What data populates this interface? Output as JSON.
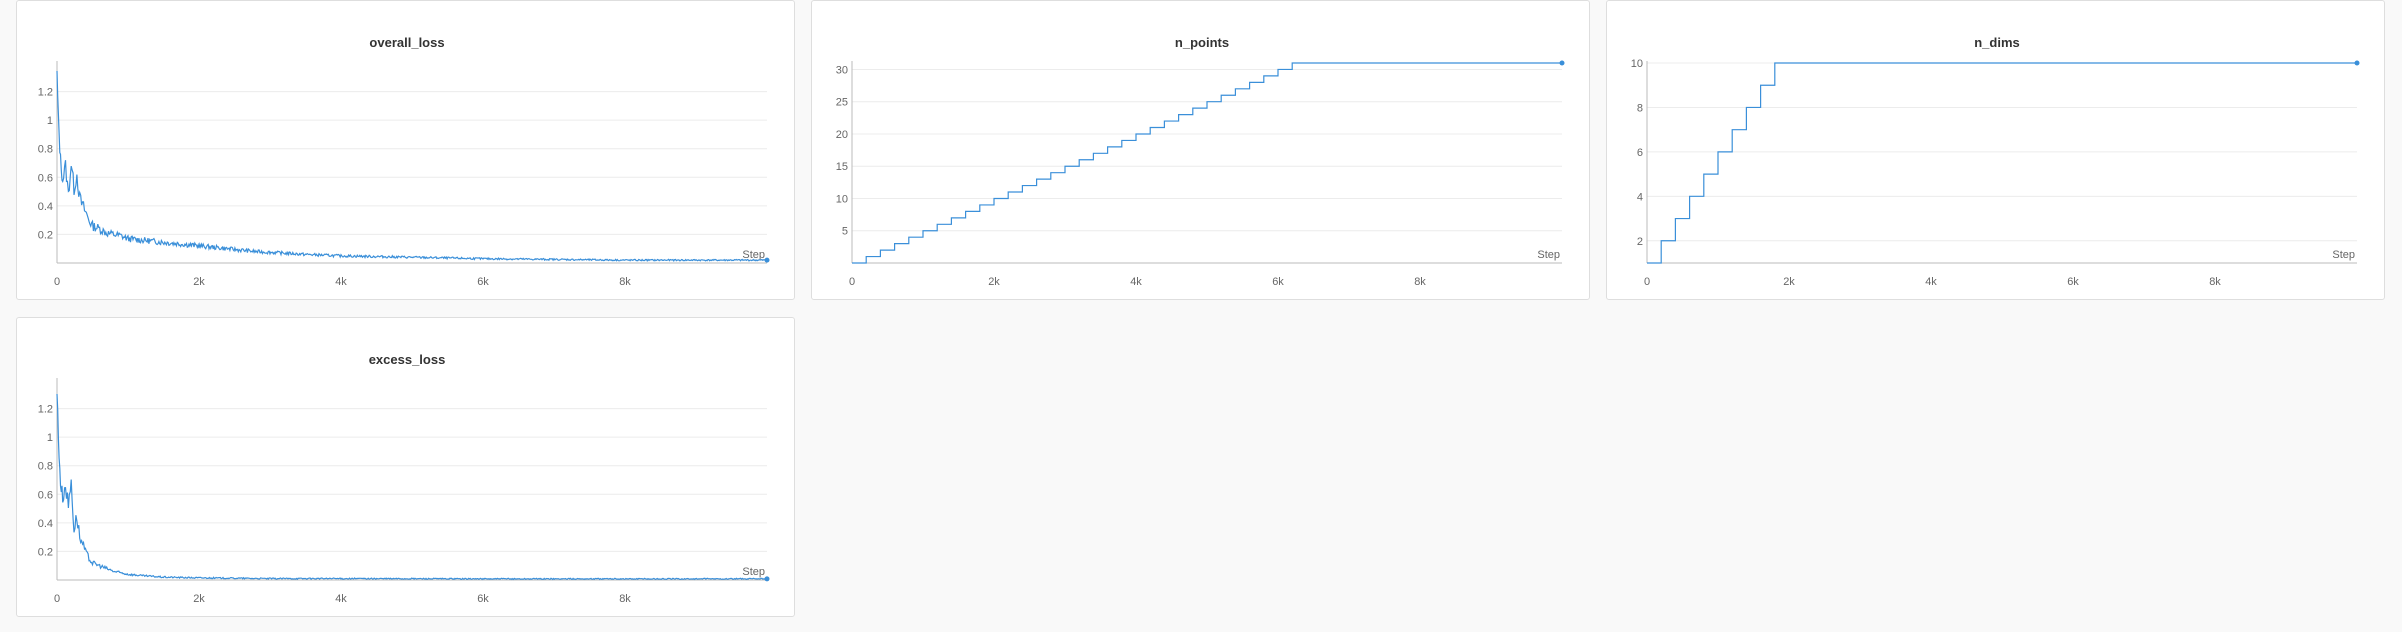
{
  "accent_color": "#3a8fd9",
  "chart_data": [
    {
      "id": "overall_loss",
      "type": "line",
      "title": "overall_loss",
      "xlabel": "Step",
      "xlim": [
        0,
        10000
      ],
      "ylim": [
        0,
        1.4
      ],
      "xticks": [
        0,
        2000,
        4000,
        6000,
        8000
      ],
      "xtick_labels": [
        "0",
        "2k",
        "4k",
        "6k",
        "8k"
      ],
      "yticks": [
        0.2,
        0.4,
        0.6,
        0.8,
        1,
        1.2
      ],
      "ytick_labels": [
        "0.2",
        "0.4",
        "0.6",
        "0.8",
        "1",
        "1.2"
      ],
      "grid": true,
      "series": [
        {
          "x": [
            0,
            20,
            50,
            80,
            120,
            160,
            200,
            240,
            280,
            320,
            360,
            400,
            450,
            500,
            600,
            700,
            800,
            900,
            1000,
            1200,
            1400,
            1600,
            1800,
            2000,
            2200,
            2400,
            2600,
            2800,
            3000,
            3500,
            4000,
            5000,
            6000,
            7000,
            8000,
            9000,
            10000
          ],
          "y": [
            1.32,
            1.0,
            0.72,
            0.58,
            0.68,
            0.48,
            0.7,
            0.52,
            0.62,
            0.45,
            0.4,
            0.36,
            0.3,
            0.26,
            0.24,
            0.21,
            0.2,
            0.19,
            0.17,
            0.16,
            0.15,
            0.14,
            0.13,
            0.12,
            0.11,
            0.1,
            0.09,
            0.08,
            0.075,
            0.06,
            0.05,
            0.04,
            0.03,
            0.025,
            0.02,
            0.02,
            0.02
          ]
        }
      ]
    },
    {
      "id": "n_points",
      "type": "line",
      "title": "n_points",
      "xlabel": "Step",
      "xlim": [
        0,
        10000
      ],
      "ylim": [
        0,
        31
      ],
      "xticks": [
        0,
        2000,
        4000,
        6000,
        8000
      ],
      "xtick_labels": [
        "0",
        "2k",
        "4k",
        "6k",
        "8k"
      ],
      "yticks": [
        5,
        10,
        15,
        20,
        25,
        30
      ],
      "ytick_labels": [
        "5",
        "10",
        "15",
        "20",
        "25",
        "30"
      ],
      "grid": true,
      "step": true,
      "series": [
        {
          "x": [
            0,
            200,
            400,
            600,
            800,
            1000,
            1200,
            1400,
            1600,
            1800,
            2000,
            2200,
            2400,
            2600,
            2800,
            3000,
            3200,
            3400,
            3600,
            3800,
            4000,
            4200,
            4400,
            4600,
            4800,
            5000,
            5200,
            5400,
            5600,
            5800,
            6000,
            6200,
            10000
          ],
          "y": [
            0,
            1,
            2,
            3,
            4,
            5,
            6,
            7,
            8,
            9,
            10,
            11,
            12,
            13,
            14,
            15,
            16,
            17,
            18,
            19,
            20,
            21,
            22,
            23,
            24,
            25,
            26,
            27,
            28,
            29,
            30,
            31,
            31
          ]
        }
      ]
    },
    {
      "id": "n_dims",
      "type": "line",
      "title": "n_dims",
      "xlabel": "Step",
      "xlim": [
        0,
        10000
      ],
      "ylim": [
        1,
        10
      ],
      "xticks": [
        0,
        2000,
        4000,
        6000,
        8000
      ],
      "xtick_labels": [
        "0",
        "2k",
        "4k",
        "6k",
        "8k"
      ],
      "yticks": [
        2,
        4,
        6,
        8,
        10
      ],
      "ytick_labels": [
        "2",
        "4",
        "6",
        "8",
        "10"
      ],
      "grid": true,
      "step": true,
      "series": [
        {
          "x": [
            0,
            200,
            400,
            600,
            800,
            1000,
            1200,
            1400,
            1600,
            1800,
            10000
          ],
          "y": [
            1,
            2,
            3,
            4,
            5,
            6,
            7,
            8,
            9,
            10,
            10
          ]
        }
      ]
    },
    {
      "id": "excess_loss",
      "type": "line",
      "title": "excess_loss",
      "xlabel": "Step",
      "xlim": [
        0,
        10000
      ],
      "ylim": [
        0,
        1.4
      ],
      "xticks": [
        0,
        2000,
        4000,
        6000,
        8000
      ],
      "xtick_labels": [
        "0",
        "2k",
        "4k",
        "6k",
        "8k"
      ],
      "yticks": [
        0.2,
        0.4,
        0.6,
        0.8,
        1,
        1.2
      ],
      "ytick_labels": [
        "0.2",
        "0.4",
        "0.6",
        "0.8",
        "1",
        "1.2"
      ],
      "grid": true,
      "series": [
        {
          "x": [
            0,
            20,
            50,
            80,
            120,
            160,
            200,
            240,
            280,
            320,
            360,
            400,
            450,
            500,
            600,
            700,
            800,
            1000,
            1200,
            1500,
            2000,
            3000,
            4000,
            6000,
            8000,
            10000
          ],
          "y": [
            1.32,
            1.0,
            0.68,
            0.58,
            0.66,
            0.52,
            0.7,
            0.35,
            0.45,
            0.3,
            0.25,
            0.2,
            0.15,
            0.12,
            0.1,
            0.08,
            0.06,
            0.04,
            0.03,
            0.02,
            0.015,
            0.01,
            0.01,
            0.008,
            0.008,
            0.008
          ]
        }
      ]
    }
  ]
}
